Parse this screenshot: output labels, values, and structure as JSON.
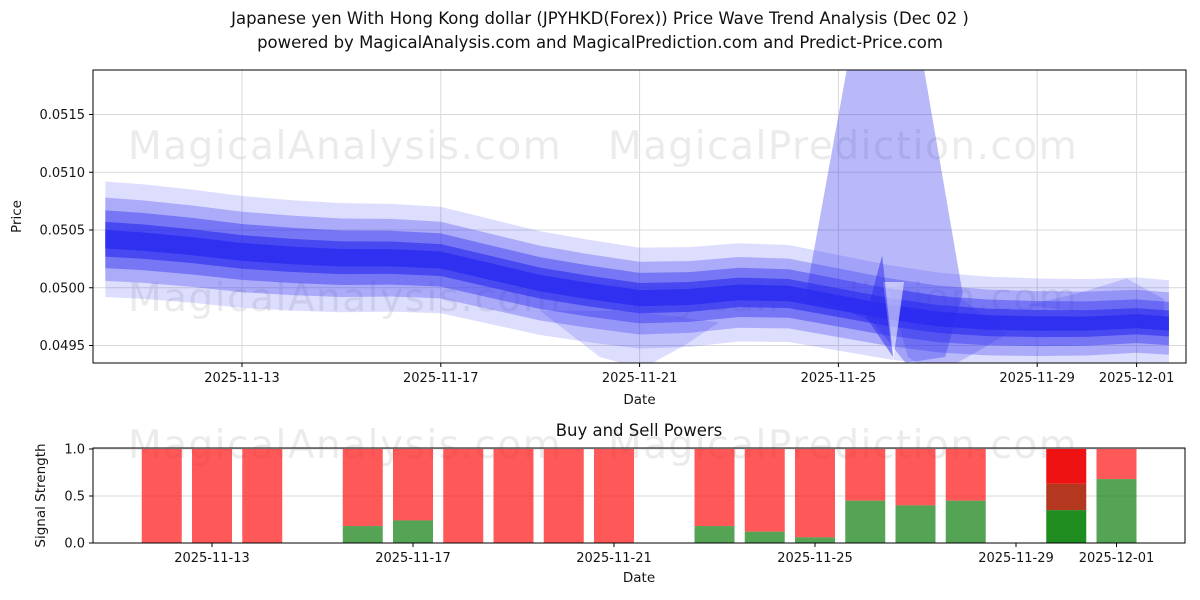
{
  "title": {
    "line1": "Japanese yen With Hong Kong dollar (JPYHKD(Forex)) Price Wave Trend Analysis (Dec 02 )",
    "line2": "powered by MagicalAnalysis.com and MagicalPrediction.com and Predict-Price.com"
  },
  "watermarks": {
    "analysis": "MagicalAnalysis.com",
    "prediction": "MagicalPrediction.com"
  },
  "colors": {
    "band_blue": "43,43,240",
    "grid": "#d9d9d9",
    "spine": "#000000",
    "sell_red": "rgba(255,23,23,0.72)",
    "buy_green": "rgba(20,128,20,0.72)"
  },
  "chart_data": [
    {
      "type": "area",
      "title": "",
      "xlabel": "Date",
      "ylabel": "Price",
      "ylim": [
        0.0493,
        0.0519
      ],
      "grid": true,
      "legend": "none",
      "yticks": [
        {
          "value": 0.0495,
          "label": "0.0495"
        },
        {
          "value": 0.05,
          "label": "0.0500"
        },
        {
          "value": 0.0505,
          "label": "0.0505"
        },
        {
          "value": 0.051,
          "label": "0.0510"
        },
        {
          "value": 0.0515,
          "label": "0.0515"
        }
      ],
      "xticks": [
        {
          "day": 3,
          "label": "2025-11-13"
        },
        {
          "day": 7,
          "label": "2025-11-17"
        },
        {
          "day": 11,
          "label": "2025-11-21"
        },
        {
          "day": 15,
          "label": "2025-11-25"
        },
        {
          "day": 19,
          "label": "2025-11-29"
        },
        {
          "day": 21,
          "label": "2025-12-01"
        }
      ],
      "day_zero_date": "2025-11-10",
      "band": {
        "center": [
          [
            0.25,
            0.05042
          ],
          [
            1,
            0.0504
          ],
          [
            2,
            0.05036
          ],
          [
            3,
            0.05031
          ],
          [
            4,
            0.05028
          ],
          [
            5,
            0.05026
          ],
          [
            6,
            0.05026
          ],
          [
            7,
            0.05024
          ],
          [
            8,
            0.05014
          ],
          [
            9,
            0.05004
          ],
          [
            10,
            0.04997
          ],
          [
            11,
            0.04991
          ],
          [
            12,
            0.04992
          ],
          [
            13,
            0.04996
          ],
          [
            14,
            0.04995
          ],
          [
            15,
            0.04987
          ],
          [
            16,
            0.04979
          ],
          [
            17,
            0.04973
          ],
          [
            18,
            0.0497
          ],
          [
            19,
            0.04969
          ],
          [
            20,
            0.04969
          ],
          [
            21,
            0.04971
          ],
          [
            21.65,
            0.04969
          ]
        ],
        "layers": [
          {
            "hw": 0.0005,
            "alpha": 0.16
          },
          {
            "hw": 0.00036,
            "alpha": 0.28
          },
          {
            "hw": 0.00025,
            "alpha": 0.4
          },
          {
            "hw": 0.00015,
            "alpha": 0.6
          },
          {
            "hw": 8e-05,
            "alpha": 0.82
          }
        ],
        "shapes": [
          {
            "name": "forecast-spike-main",
            "stage": 1,
            "alpha": 0.33,
            "color": "blue",
            "points": [
              [
                14.35,
                0.04995
              ],
              [
                15.3,
                0.0522
              ],
              [
                16.6,
                0.0522
              ],
              [
                17.5,
                0.04995
              ],
              [
                17.15,
                0.0494
              ],
              [
                16.35,
                0.04935
              ],
              [
                15.7,
                0.0497
              ]
            ]
          },
          {
            "name": "forecast-spike-below",
            "stage": 1,
            "alpha": 0.2,
            "color": "blue",
            "points": [
              [
                16.0,
                0.05
              ],
              [
                16.4,
                0.0494
              ],
              [
                16.95,
                0.04925
              ],
              [
                17.6,
                0.0494
              ],
              [
                18.4,
                0.0496
              ],
              [
                17.5,
                0.0499
              ]
            ]
          },
          {
            "name": "lower-bulge-left",
            "stage": 1,
            "alpha": 0.16,
            "color": "blue",
            "points": [
              [
                9.0,
                0.0498
              ],
              [
                10.2,
                0.0494
              ],
              [
                11.05,
                0.0493
              ],
              [
                11.9,
                0.0495
              ],
              [
                12.6,
                0.0497
              ],
              [
                10.8,
                0.0498
              ]
            ]
          },
          {
            "name": "upper-wisp-right",
            "stage": 1,
            "alpha": 0.18,
            "color": "blue",
            "points": [
              [
                18.8,
                0.04985
              ],
              [
                19.8,
                0.04995
              ],
              [
                20.8,
                0.05008
              ],
              [
                21.55,
                0.0499
              ],
              [
                21.55,
                0.04975
              ],
              [
                20.0,
                0.04978
              ]
            ]
          },
          {
            "name": "notch-gap",
            "stage": 2,
            "alpha": 0.55,
            "color": "white",
            "points": [
              [
                15.9,
                0.05005
              ],
              [
                16.1,
                0.04936
              ],
              [
                16.32,
                0.05005
              ]
            ]
          },
          {
            "name": "narrow-spike",
            "stage": 2,
            "alpha": 0.5,
            "color": "blue",
            "points": [
              [
                15.55,
                0.04975
              ],
              [
                15.88,
                0.05028
              ],
              [
                16.1,
                0.0494
              ]
            ]
          }
        ]
      }
    },
    {
      "type": "bar",
      "title": "Buy and Sell Powers",
      "xlabel": "Date",
      "ylabel": "Signal Strength",
      "ylim": [
        0,
        1.01
      ],
      "bar_width_days": 0.8,
      "yticks": [
        {
          "value": 0.0,
          "label": "0.0"
        },
        {
          "value": 0.5,
          "label": "0.5"
        },
        {
          "value": 1.0,
          "label": "1.0"
        }
      ],
      "xticks": [
        {
          "day": 3,
          "label": "2025-11-13"
        },
        {
          "day": 7,
          "label": "2025-11-17"
        },
        {
          "day": 11,
          "label": "2025-11-21"
        },
        {
          "day": 15,
          "label": "2025-11-25"
        },
        {
          "day": 19,
          "label": "2025-11-29"
        },
        {
          "day": 21,
          "label": "2025-12-01"
        }
      ],
      "series_names": {
        "sell": "Sell power (red)",
        "buy": "Buy power (green)"
      },
      "bars": [
        {
          "date": "2025-11-12",
          "day": 2,
          "buy": 0.0,
          "sell": 1.0
        },
        {
          "date": "2025-11-13",
          "day": 3,
          "buy": 0.0,
          "sell": 1.0
        },
        {
          "date": "2025-11-14",
          "day": 4,
          "buy": 0.0,
          "sell": 1.0
        },
        {
          "date": "2025-11-16",
          "day": 6,
          "buy": 0.18,
          "sell": 1.0
        },
        {
          "date": "2025-11-17",
          "day": 7,
          "buy": 0.24,
          "sell": 1.0
        },
        {
          "date": "2025-11-18",
          "day": 8,
          "buy": 0.0,
          "sell": 1.0
        },
        {
          "date": "2025-11-19",
          "day": 9,
          "buy": 0.0,
          "sell": 1.0
        },
        {
          "date": "2025-11-20",
          "day": 10,
          "buy": 0.0,
          "sell": 1.0
        },
        {
          "date": "2025-11-21",
          "day": 11,
          "buy": 0.0,
          "sell": 1.0
        },
        {
          "date": "2025-11-23",
          "day": 13,
          "buy": 0.18,
          "sell": 1.0
        },
        {
          "date": "2025-11-24",
          "day": 14,
          "buy": 0.12,
          "sell": 1.0
        },
        {
          "date": "2025-11-25",
          "day": 15,
          "buy": 0.06,
          "sell": 1.0
        },
        {
          "date": "2025-11-26",
          "day": 16,
          "buy": 0.45,
          "sell": 1.0
        },
        {
          "date": "2025-11-27",
          "day": 17,
          "buy": 0.4,
          "sell": 1.0
        },
        {
          "date": "2025-11-28",
          "day": 18,
          "buy": 0.45,
          "sell": 1.0
        },
        {
          "date": "2025-11-30",
          "day": 20,
          "buy": 0.35,
          "sell": 1.0,
          "segments": [
            {
              "from": 0.0,
              "to": 0.35,
              "color": "#1e8c1e"
            },
            {
              "from": 0.35,
              "to": 0.63,
              "color": "#b4371f"
            },
            {
              "from": 0.63,
              "to": 1.0,
              "color": "#ee1212"
            }
          ]
        },
        {
          "date": "2025-12-01",
          "day": 21,
          "buy": 0.68,
          "sell": 1.0
        }
      ]
    }
  ]
}
